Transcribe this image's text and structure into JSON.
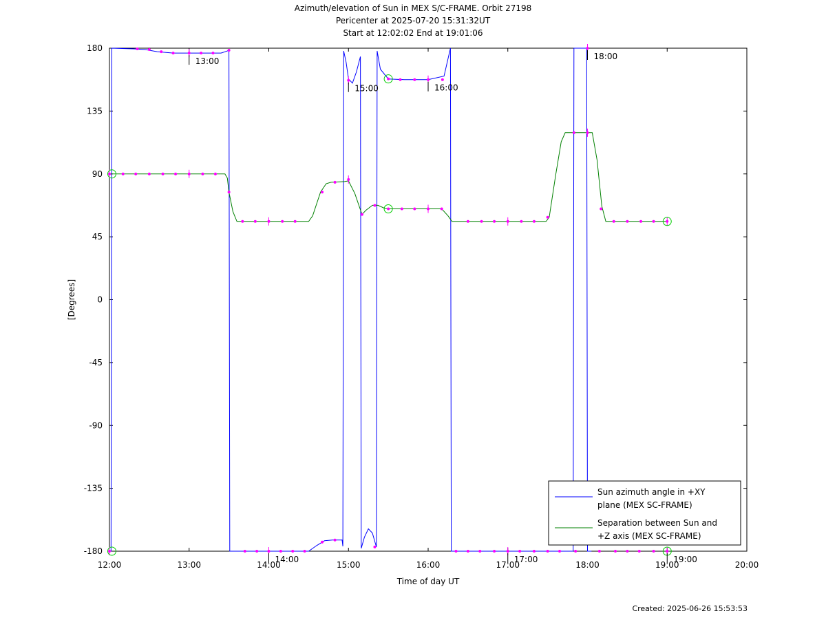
{
  "header": {
    "title": "Azimuth/elevation of Sun in MEX S/C-FRAME.  Orbit 27198",
    "pericenter": "Pericenter at 2025-07-20 15:31:32UT",
    "span": "Start at 12:02:02 End at 19:01:06"
  },
  "footer": {
    "created": "Created: 2025-06-26 15:53:53"
  },
  "colors": {
    "azimuth": "#0000ff",
    "separation": "#008000",
    "markers": "#ff00ff",
    "endpoints": "#00cc00",
    "frame": "#000000"
  },
  "chart_data": {
    "type": "line",
    "xlabel": "Time of day UT",
    "ylabel": "[Degrees]",
    "xlim": [
      12.0,
      20.0
    ],
    "ylim": [
      -180,
      180
    ],
    "x_ticks": [
      12,
      13,
      14,
      15,
      16,
      17,
      18,
      19,
      20
    ],
    "x_tick_labels": [
      "12:00",
      "13:00",
      "14:00",
      "15:00",
      "16:00",
      "17:00",
      "18:00",
      "19:00",
      "20:00"
    ],
    "y_ticks": [
      180,
      135,
      90,
      45,
      0,
      -45,
      -90,
      -135,
      -180
    ],
    "y_tick_labels": [
      "180",
      "135",
      "90",
      "45",
      "0",
      "-45",
      "-90",
      "-135",
      "-180"
    ],
    "grid": false,
    "legend_position": "lower-right",
    "series": [
      {
        "name": "Sun azimuth angle in +XY plane (MEX SC-FRAME)",
        "legend_lines": [
          "Sun azimuth angle in +XY",
          "plane (MEX SC-FRAME)"
        ],
        "color": "#0000ff",
        "points": [
          [
            12.0,
            -180
          ],
          [
            12.02,
            -180
          ],
          [
            12.03,
            180
          ],
          [
            12.3,
            179.5
          ],
          [
            12.45,
            179
          ],
          [
            12.6,
            177.5
          ],
          [
            12.8,
            176.5
          ],
          [
            13.0,
            176.5
          ],
          [
            13.2,
            176.5
          ],
          [
            13.4,
            176.5
          ],
          [
            13.48,
            178
          ],
          [
            13.5,
            179
          ],
          [
            13.51,
            -180
          ],
          [
            14.0,
            -180
          ],
          [
            14.5,
            -180
          ],
          [
            14.6,
            -176
          ],
          [
            14.7,
            -172.5
          ],
          [
            14.8,
            -172
          ],
          [
            14.92,
            -172
          ],
          [
            14.93,
            -176.5
          ],
          [
            14.94,
            178
          ],
          [
            14.97,
            170
          ],
          [
            15.0,
            158
          ],
          [
            15.05,
            155
          ],
          [
            15.1,
            163
          ],
          [
            15.15,
            174
          ],
          [
            15.16,
            -178
          ],
          [
            15.2,
            -170
          ],
          [
            15.25,
            -164
          ],
          [
            15.3,
            -167
          ],
          [
            15.35,
            -177
          ],
          [
            15.36,
            178
          ],
          [
            15.4,
            165
          ],
          [
            15.5,
            158
          ],
          [
            15.7,
            157.5
          ],
          [
            16.0,
            157.5
          ],
          [
            16.2,
            160
          ],
          [
            16.28,
            180
          ],
          [
            16.29,
            -180
          ],
          [
            17.0,
            -180
          ],
          [
            17.8,
            -180
          ],
          [
            17.82,
            -180
          ],
          [
            17.83,
            180
          ],
          [
            17.99,
            180
          ],
          [
            18.0,
            -180
          ],
          [
            18.05,
            -180
          ]
        ],
        "markers": [
          [
            12.0,
            -180
          ],
          [
            12.35,
            179.5
          ],
          [
            12.5,
            179
          ],
          [
            12.65,
            177.5
          ],
          [
            12.8,
            176.5
          ],
          [
            13.0,
            176.5
          ],
          [
            13.15,
            176.5
          ],
          [
            13.3,
            176.5
          ],
          [
            13.5,
            178.5
          ],
          [
            13.7,
            -180
          ],
          [
            13.85,
            -180
          ],
          [
            14.0,
            -180
          ],
          [
            14.15,
            -180
          ],
          [
            14.3,
            -180
          ],
          [
            14.45,
            -180
          ],
          [
            14.67,
            -173.5
          ],
          [
            14.83,
            -172
          ],
          [
            15.0,
            157
          ],
          [
            15.33,
            -177
          ],
          [
            15.5,
            158
          ],
          [
            15.65,
            157.5
          ],
          [
            15.83,
            157.5
          ],
          [
            16.0,
            157.5
          ],
          [
            16.18,
            157.5
          ],
          [
            16.35,
            -180
          ],
          [
            16.5,
            -180
          ],
          [
            16.65,
            -180
          ],
          [
            16.83,
            -180
          ],
          [
            17.0,
            -180
          ],
          [
            17.15,
            -180
          ],
          [
            17.33,
            -180
          ],
          [
            17.5,
            -180
          ],
          [
            17.65,
            -180
          ],
          [
            17.85,
            -180
          ],
          [
            18.0,
            180
          ],
          [
            18.15,
            -180
          ],
          [
            18.35,
            -180
          ],
          [
            18.5,
            -180
          ],
          [
            18.65,
            -180
          ],
          [
            18.83,
            -180
          ],
          [
            19.0,
            -180
          ]
        ]
      },
      {
        "name": "Separation between Sun and +Z axis (MEX SC-FRAME)",
        "legend_lines": [
          "Separation between Sun and",
          "+Z axis (MEX SC-FRAME)"
        ],
        "color": "#008000",
        "points": [
          [
            12.0,
            90
          ],
          [
            13.45,
            90
          ],
          [
            13.48,
            87
          ],
          [
            13.5,
            77
          ],
          [
            13.55,
            63
          ],
          [
            13.6,
            56
          ],
          [
            14.0,
            56
          ],
          [
            14.5,
            56
          ],
          [
            14.55,
            60
          ],
          [
            14.65,
            77
          ],
          [
            14.72,
            83
          ],
          [
            14.78,
            84
          ],
          [
            14.95,
            84.5
          ],
          [
            15.0,
            85
          ],
          [
            15.08,
            76
          ],
          [
            15.17,
            61
          ],
          [
            15.22,
            64
          ],
          [
            15.3,
            67.5
          ],
          [
            15.37,
            67.5
          ],
          [
            15.45,
            65.5
          ],
          [
            15.5,
            65
          ],
          [
            16.0,
            65
          ],
          [
            16.17,
            65
          ],
          [
            16.25,
            60
          ],
          [
            16.3,
            56
          ],
          [
            16.8,
            56
          ],
          [
            17.0,
            56
          ],
          [
            17.48,
            56
          ],
          [
            17.52,
            59
          ],
          [
            17.6,
            89
          ],
          [
            17.67,
            113
          ],
          [
            17.72,
            119.5
          ],
          [
            18.0,
            119.5
          ],
          [
            18.06,
            119.5
          ],
          [
            18.12,
            100
          ],
          [
            18.18,
            67
          ],
          [
            18.23,
            56
          ],
          [
            19.0,
            56
          ]
        ],
        "markers": [
          [
            12.0,
            90
          ],
          [
            12.17,
            90
          ],
          [
            12.33,
            90
          ],
          [
            12.5,
            90
          ],
          [
            12.67,
            90
          ],
          [
            12.83,
            90
          ],
          [
            13.0,
            90
          ],
          [
            13.17,
            90
          ],
          [
            13.33,
            90
          ],
          [
            13.5,
            77
          ],
          [
            13.67,
            56
          ],
          [
            13.83,
            56
          ],
          [
            14.0,
            56
          ],
          [
            14.17,
            56
          ],
          [
            14.33,
            56
          ],
          [
            14.67,
            77
          ],
          [
            14.83,
            84
          ],
          [
            15.0,
            86
          ],
          [
            15.17,
            61
          ],
          [
            15.33,
            67.5
          ],
          [
            15.5,
            65
          ],
          [
            15.67,
            65
          ],
          [
            15.83,
            65
          ],
          [
            16.0,
            65
          ],
          [
            16.17,
            65
          ],
          [
            16.5,
            56
          ],
          [
            16.67,
            56
          ],
          [
            16.83,
            56
          ],
          [
            17.0,
            56
          ],
          [
            17.17,
            56
          ],
          [
            17.33,
            56
          ],
          [
            17.5,
            59
          ],
          [
            17.83,
            119.5
          ],
          [
            18.0,
            119.5
          ],
          [
            18.17,
            65
          ],
          [
            18.33,
            56
          ],
          [
            18.5,
            56
          ],
          [
            18.67,
            56
          ],
          [
            18.83,
            56
          ],
          [
            19.0,
            56
          ]
        ]
      }
    ],
    "endpoint_circles": [
      [
        12.03,
        90
      ],
      [
        12.03,
        -180
      ],
      [
        15.5,
        158
      ],
      [
        15.5,
        65
      ],
      [
        19.0,
        56
      ],
      [
        19.0,
        -180
      ]
    ],
    "hour_labels": [
      {
        "text": "13:00",
        "x": 13.0,
        "y": 176.5
      },
      {
        "text": "14:00",
        "x": 14.0,
        "y": -180
      },
      {
        "text": "15:00",
        "x": 15.0,
        "y": 157
      },
      {
        "text": "16:00",
        "x": 16.0,
        "y": 157.5
      },
      {
        "text": "17:00",
        "x": 17.0,
        "y": -180
      },
      {
        "text": "18:00",
        "x": 18.0,
        "y": 180
      },
      {
        "text": "19:00",
        "x": 19.0,
        "y": -180
      }
    ]
  }
}
